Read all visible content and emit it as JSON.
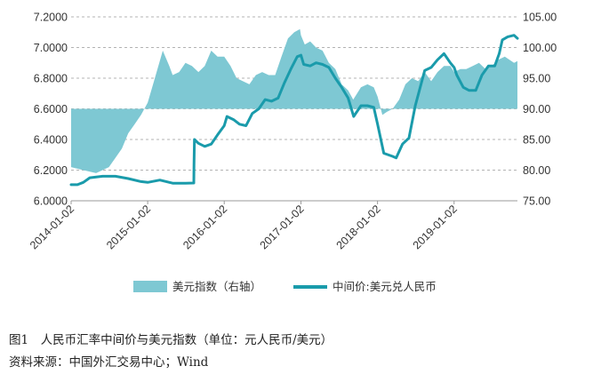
{
  "chart_data": {
    "type": "line+area",
    "x_tick_labels": [
      "2014-01-02",
      "2015-01-02",
      "2016-01-02",
      "2017-01-02",
      "2018-01-02",
      "2019-01-02"
    ],
    "x_range": [
      "2014-01-02",
      "2019-10-31"
    ],
    "y_left": {
      "ylim": [
        6.0,
        7.2
      ],
      "ticks": [
        "6.0000",
        "6.2000",
        "6.4000",
        "6.6000",
        "6.8000",
        "7.0000",
        "7.2000"
      ]
    },
    "y_right": {
      "ylim": [
        75,
        105
      ],
      "ticks": [
        "75.00",
        "80.00",
        "85.00",
        "90.00",
        "95.00",
        "100.00",
        "105.00"
      ],
      "baseline": 90
    },
    "grid": "horizontal dashed",
    "legend_placement": "bottom",
    "series": [
      {
        "name": "美元指数（右轴）",
        "kind": "area",
        "axis": "right",
        "color": "#7ec8d3",
        "x": [
          "2014-01-02",
          "2014-03-01",
          "2014-05-01",
          "2014-07-01",
          "2014-09-01",
          "2014-10-01",
          "2014-11-01",
          "2014-12-01",
          "2015-01-02",
          "2015-02-01",
          "2015-03-15",
          "2015-04-15",
          "2015-05-01",
          "2015-06-01",
          "2015-07-01",
          "2015-08-01",
          "2015-09-01",
          "2015-10-01",
          "2015-11-01",
          "2015-12-01",
          "2016-01-02",
          "2016-02-01",
          "2016-03-01",
          "2016-05-01",
          "2016-06-01",
          "2016-07-01",
          "2016-08-01",
          "2016-09-01",
          "2016-10-01",
          "2016-11-01",
          "2016-12-01",
          "2016-12-28",
          "2017-01-02",
          "2017-01-20",
          "2017-02-15",
          "2017-03-15",
          "2017-04-15",
          "2017-05-15",
          "2017-06-15",
          "2017-07-15",
          "2017-08-15",
          "2017-09-08",
          "2017-10-15",
          "2017-11-15",
          "2017-12-15",
          "2018-01-02",
          "2018-01-25",
          "2018-02-15",
          "2018-03-15",
          "2018-04-15",
          "2018-05-15",
          "2018-06-15",
          "2018-07-15",
          "2018-08-15",
          "2018-09-15",
          "2018-10-15",
          "2018-11-15",
          "2018-12-15",
          "2019-01-02",
          "2019-02-01",
          "2019-03-01",
          "2019-04-01",
          "2019-05-01",
          "2019-06-01",
          "2019-07-01",
          "2019-08-01",
          "2019-09-01",
          "2019-10-15",
          "2019-10-31"
        ],
        "values": [
          80.5,
          80.0,
          79.5,
          80.5,
          83.5,
          86.0,
          87.5,
          89.0,
          91.0,
          94.5,
          99.5,
          97.0,
          95.5,
          96.0,
          97.5,
          97.0,
          96.0,
          97.0,
          99.5,
          98.5,
          98.5,
          97.0,
          95.0,
          94.0,
          95.5,
          96.0,
          95.5,
          95.5,
          98.5,
          101.5,
          102.5,
          103.0,
          102.0,
          100.5,
          101.0,
          100.0,
          99.5,
          97.5,
          96.5,
          94.0,
          93.0,
          91.5,
          93.5,
          94.0,
          93.5,
          92.0,
          89.0,
          89.5,
          90.0,
          91.5,
          94.0,
          95.0,
          94.5,
          96.0,
          94.5,
          96.0,
          97.0,
          97.0,
          96.0,
          96.5,
          96.5,
          97.0,
          97.5,
          96.5,
          97.0,
          98.0,
          98.5,
          97.5,
          97.8
        ]
      },
      {
        "name": "中间价:美元兑人民币",
        "kind": "line",
        "axis": "left",
        "color": "#1a9bab",
        "x": [
          "2014-01-02",
          "2014-02-01",
          "2014-03-01",
          "2014-04-01",
          "2014-06-01",
          "2014-08-01",
          "2014-10-01",
          "2014-12-01",
          "2015-01-02",
          "2015-03-01",
          "2015-05-01",
          "2015-07-01",
          "2015-08-10",
          "2015-08-11",
          "2015-08-13",
          "2015-09-01",
          "2015-10-01",
          "2015-11-01",
          "2015-12-01",
          "2016-01-02",
          "2016-01-15",
          "2016-02-15",
          "2016-03-15",
          "2016-04-15",
          "2016-05-15",
          "2016-06-15",
          "2016-07-15",
          "2016-08-15",
          "2016-09-15",
          "2016-10-15",
          "2016-11-15",
          "2016-12-15",
          "2017-01-02",
          "2017-01-15",
          "2017-02-15",
          "2017-03-15",
          "2017-04-15",
          "2017-05-15",
          "2017-06-15",
          "2017-07-15",
          "2017-08-15",
          "2017-09-10",
          "2017-10-15",
          "2017-11-15",
          "2017-12-15",
          "2018-01-02",
          "2018-02-01",
          "2018-03-15",
          "2018-04-01",
          "2018-05-01",
          "2018-06-01",
          "2018-07-01",
          "2018-08-15",
          "2018-09-15",
          "2018-10-15",
          "2018-11-15",
          "2018-12-15",
          "2019-01-02",
          "2019-01-15",
          "2019-02-15",
          "2019-03-15",
          "2019-04-15",
          "2019-05-15",
          "2019-06-15",
          "2019-07-15",
          "2019-08-05",
          "2019-08-20",
          "2019-09-15",
          "2019-10-15",
          "2019-10-31"
        ],
        "values": [
          6.105,
          6.105,
          6.12,
          6.15,
          6.16,
          6.16,
          6.145,
          6.125,
          6.12,
          6.135,
          6.115,
          6.115,
          6.116,
          6.23,
          6.4,
          6.375,
          6.355,
          6.37,
          6.43,
          6.49,
          6.55,
          6.53,
          6.5,
          6.49,
          6.57,
          6.6,
          6.66,
          6.65,
          6.67,
          6.77,
          6.86,
          6.94,
          6.95,
          6.89,
          6.88,
          6.9,
          6.89,
          6.87,
          6.8,
          6.74,
          6.67,
          6.55,
          6.62,
          6.62,
          6.61,
          6.5,
          6.31,
          6.29,
          6.28,
          6.37,
          6.41,
          6.62,
          6.85,
          6.87,
          6.92,
          6.96,
          6.9,
          6.87,
          6.82,
          6.74,
          6.72,
          6.72,
          6.82,
          6.88,
          6.88,
          6.96,
          7.05,
          7.07,
          7.08,
          7.06
        ]
      }
    ]
  },
  "caption": {
    "figure": "图1　人民币汇率中间价与美元指数（单位：元人民币/美元）",
    "source": "资料来源：中国外汇交易中心；Wind"
  }
}
